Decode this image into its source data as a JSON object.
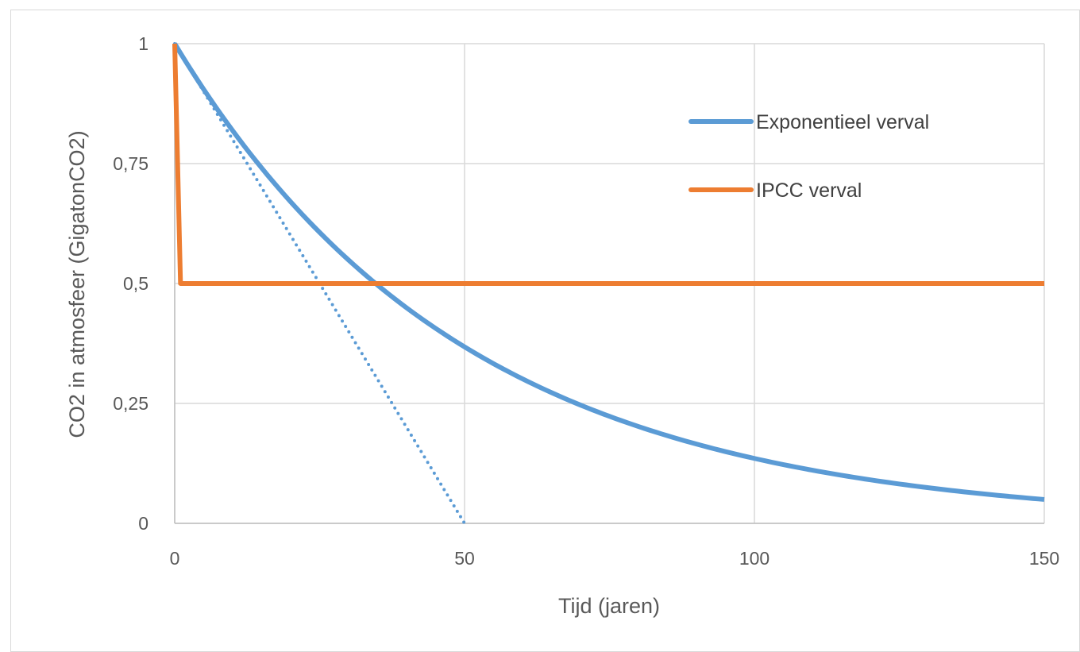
{
  "chart_data": {
    "type": "line",
    "xlabel": "Tijd (jaren)",
    "ylabel": "CO2 in atmosfeer (GigatonCO2)",
    "xlim": [
      0,
      150
    ],
    "ylim": [
      0,
      1
    ],
    "x_ticks": [
      "0",
      "50",
      "100",
      "150"
    ],
    "y_ticks": [
      "0",
      "0,25",
      "0,5",
      "0,75",
      "1"
    ],
    "grid": true,
    "legend_position": "top-right",
    "series": [
      {
        "name": "Exponentieel verval",
        "color": "#5b9bd5",
        "style": "solid",
        "formula": "exp(-t/50)",
        "x": [
          0,
          10,
          20,
          30,
          40,
          50,
          60,
          70,
          80,
          90,
          100,
          110,
          120,
          130,
          140,
          150
        ],
        "y": [
          1.0,
          0.819,
          0.67,
          0.549,
          0.449,
          0.368,
          0.301,
          0.247,
          0.202,
          0.165,
          0.135,
          0.111,
          0.091,
          0.074,
          0.061,
          0.05
        ]
      },
      {
        "name": "IPCC verval",
        "color": "#ed7d31",
        "style": "solid",
        "x": [
          0,
          1,
          150
        ],
        "y": [
          1.0,
          0.5,
          0.5
        ]
      },
      {
        "color": "#5b9bd5",
        "style": "dotted",
        "x": [
          0,
          50
        ],
        "y": [
          1.0,
          0.0
        ]
      }
    ]
  }
}
